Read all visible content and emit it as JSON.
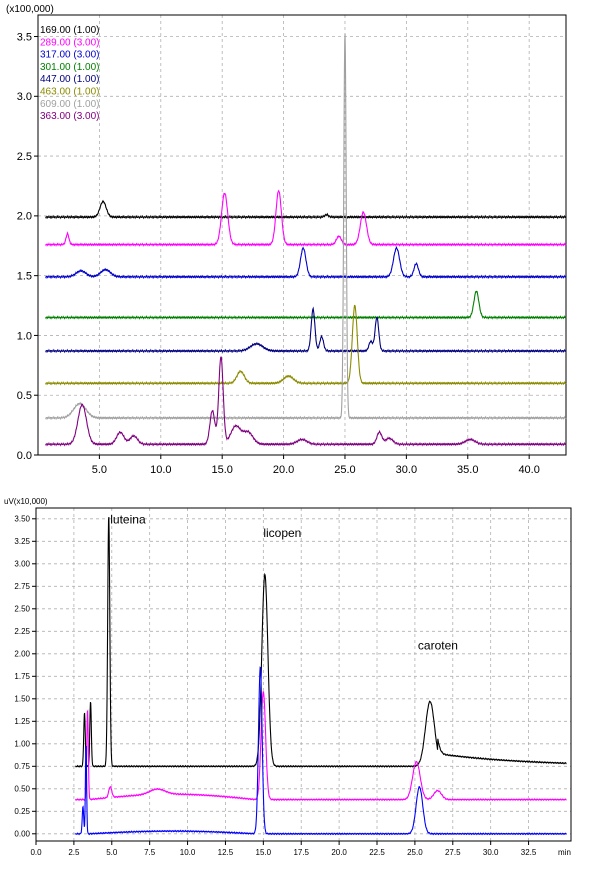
{
  "chart_data": [
    {
      "type": "line",
      "multiplier_label": "(x100,000)",
      "xlim": [
        0,
        43
      ],
      "ylim": [
        0,
        3.68
      ],
      "x_ticks": [
        {
          "value": 5.0,
          "label": "5.0"
        },
        {
          "value": 10.0,
          "label": "10.0"
        },
        {
          "value": 15.0,
          "label": "15.0"
        },
        {
          "value": 20.0,
          "label": "20.0"
        },
        {
          "value": 25.0,
          "label": "25.0"
        },
        {
          "value": 30.0,
          "label": "30.0"
        },
        {
          "value": 35.0,
          "label": "35.0"
        },
        {
          "value": 40.0,
          "label": "40.0"
        }
      ],
      "y_ticks": [
        {
          "value": 0,
          "label": "0.0"
        },
        {
          "value": 0.5,
          "label": "0.5"
        },
        {
          "value": 1.0,
          "label": "1.0"
        },
        {
          "value": 1.5,
          "label": "1.5"
        },
        {
          "value": 2.0,
          "label": "2.0"
        },
        {
          "value": 2.5,
          "label": "2.5"
        },
        {
          "value": 3.0,
          "label": "3.0"
        },
        {
          "value": 3.5,
          "label": "3.5"
        }
      ],
      "x_range": [
        0.6,
        43
      ],
      "legend": [
        {
          "label": "169.00 (1.00)",
          "color": "#000000"
        },
        {
          "label": "289.00 (3.00)",
          "color": "#ff00ff"
        },
        {
          "label": "317.00 (3.00)",
          "color": "#0000cc"
        },
        {
          "label": "301.00 (1.00)",
          "color": "#008000"
        },
        {
          "label": "447.00 (1.00)",
          "color": "#000080"
        },
        {
          "label": "463.00 (1.00)",
          "color": "#8b8b00"
        },
        {
          "label": "609.00 (1.00)",
          "color": "#a0a0a0"
        },
        {
          "label": "363.00 (3.00)",
          "color": "#800080"
        }
      ],
      "series": [
        {
          "color": "#000000",
          "baseline": 1.99,
          "peaks": [
            [
              5.3,
              0.13,
              0.25
            ],
            [
              23.5,
              0.02,
              0.15
            ]
          ]
        },
        {
          "color": "#ff00ff",
          "baseline": 1.76,
          "peaks": [
            [
              2.4,
              0.09,
              0.12
            ],
            [
              15.2,
              0.43,
              0.25
            ],
            [
              19.6,
              0.45,
              0.22
            ],
            [
              24.5,
              0.07,
              0.2
            ],
            [
              26.5,
              0.27,
              0.25
            ]
          ]
        },
        {
          "color": "#0000cc",
          "baseline": 1.49,
          "peaks": [
            [
              3.5,
              0.05,
              0.4
            ],
            [
              5.5,
              0.06,
              0.4
            ],
            [
              21.6,
              0.24,
              0.22
            ],
            [
              29.2,
              0.24,
              0.25
            ],
            [
              30.8,
              0.11,
              0.18
            ]
          ]
        },
        {
          "color": "#008000",
          "baseline": 1.15,
          "peaks": [
            [
              35.7,
              0.22,
              0.2
            ]
          ]
        },
        {
          "color": "#000080",
          "baseline": 0.87,
          "peaks": [
            [
              17.8,
              0.06,
              0.5
            ],
            [
              22.4,
              0.35,
              0.15
            ],
            [
              23.1,
              0.12,
              0.15
            ],
            [
              27.1,
              0.08,
              0.15
            ],
            [
              27.6,
              0.28,
              0.15
            ]
          ]
        },
        {
          "color": "#8b8b00",
          "baseline": 0.6,
          "peaks": [
            [
              16.5,
              0.1,
              0.3
            ],
            [
              20.4,
              0.06,
              0.4
            ],
            [
              25.8,
              0.65,
              0.2
            ]
          ]
        },
        {
          "color": "#a0a0a0",
          "baseline": 0.31,
          "peaks": [
            [
              3.4,
              0.12,
              0.5
            ],
            [
              25.0,
              3.22,
              0.1
            ]
          ]
        },
        {
          "color": "#800080",
          "baseline": 0.09,
          "peaks": [
            [
              3.6,
              0.33,
              0.35
            ],
            [
              6.7,
              0.1,
              0.3
            ],
            [
              7.8,
              0.07,
              0.3
            ],
            [
              14.2,
              0.28,
              0.2
            ],
            [
              14.9,
              0.73,
              0.18
            ],
            [
              16.1,
              0.15,
              0.4
            ],
            [
              17.1,
              0.1,
              0.4
            ],
            [
              21.5,
              0.04,
              0.4
            ],
            [
              27.8,
              0.1,
              0.2
            ],
            [
              28.6,
              0.05,
              0.3
            ],
            [
              35.2,
              0.04,
              0.4
            ]
          ]
        }
      ]
    },
    {
      "type": "line",
      "multiplier_label": "uV(x10,000)",
      "x_unit_label": "min",
      "xlim": [
        0,
        35.3
      ],
      "ylim": [
        -0.08,
        3.62
      ],
      "x_ticks": [
        {
          "value": 0,
          "label": "0.0"
        },
        {
          "value": 2.5,
          "label": "2.5"
        },
        {
          "value": 5.0,
          "label": "5.0"
        },
        {
          "value": 7.5,
          "label": "7.5"
        },
        {
          "value": 10.0,
          "label": "10.0"
        },
        {
          "value": 12.5,
          "label": "12.5"
        },
        {
          "value": 15.0,
          "label": "15.0"
        },
        {
          "value": 17.5,
          "label": "17.5"
        },
        {
          "value": 20.0,
          "label": "20.0"
        },
        {
          "value": 22.5,
          "label": "22.5"
        },
        {
          "value": 25.0,
          "label": "25.0"
        },
        {
          "value": 27.5,
          "label": "27.5"
        },
        {
          "value": 30.0,
          "label": "30.0"
        },
        {
          "value": 32.5,
          "label": "32.5"
        }
      ],
      "y_ticks": [
        {
          "value": 0,
          "label": "0.00"
        },
        {
          "value": 0.25,
          "label": "0.25"
        },
        {
          "value": 0.5,
          "label": "0.50"
        },
        {
          "value": 0.75,
          "label": "0.75"
        },
        {
          "value": 1.0,
          "label": "1.00"
        },
        {
          "value": 1.25,
          "label": "1.25"
        },
        {
          "value": 1.5,
          "label": "1.50"
        },
        {
          "value": 1.75,
          "label": "1.75"
        },
        {
          "value": 2.0,
          "label": "2.00"
        },
        {
          "value": 2.25,
          "label": "2.25"
        },
        {
          "value": 2.5,
          "label": "2.50"
        },
        {
          "value": 2.75,
          "label": "2.75"
        },
        {
          "value": 3.0,
          "label": "3.00"
        },
        {
          "value": 3.25,
          "label": "3.25"
        },
        {
          "value": 3.5,
          "label": "3.50"
        }
      ],
      "x_range": [
        2.6,
        35
      ],
      "annotations": [
        {
          "text": "luteina",
          "x": 4.9,
          "y": 3.45
        },
        {
          "text": "licopen",
          "x": 15.0,
          "y": 3.3
        },
        {
          "text": "caroten",
          "x": 25.2,
          "y": 2.05
        }
      ],
      "series": [
        {
          "color": "#000000",
          "baseline": 0.75,
          "tail": {
            "start": 26.5,
            "height": 0.14,
            "decay": 6
          },
          "peaks": [
            [
              3.2,
              0.6,
              0.05
            ],
            [
              3.6,
              0.72,
              0.05
            ],
            [
              4.8,
              2.78,
              0.07
            ],
            [
              15.1,
              2.13,
              0.2
            ],
            [
              26.0,
              0.72,
              0.3
            ]
          ]
        },
        {
          "color": "#ff00ff",
          "baseline": 0.38,
          "hump": {
            "start": 3.5,
            "end": 14.5,
            "height": 0.06
          },
          "peaks": [
            [
              3.4,
              1.0,
              0.05
            ],
            [
              4.9,
              0.12,
              0.1
            ],
            [
              8.0,
              0.06,
              0.5
            ],
            [
              15.0,
              1.2,
              0.15
            ],
            [
              25.1,
              0.42,
              0.25
            ],
            [
              26.5,
              0.1,
              0.25
            ]
          ]
        },
        {
          "color": "#0000ff",
          "baseline": 0.0,
          "hump": {
            "start": 3.5,
            "end": 14.5,
            "height": 0.03
          },
          "peaks": [
            [
              3.1,
              0.3,
              0.05
            ],
            [
              3.3,
              1.0,
              0.04
            ],
            [
              14.8,
              1.85,
              0.12
            ],
            [
              25.3,
              0.52,
              0.22
            ]
          ]
        }
      ]
    }
  ]
}
